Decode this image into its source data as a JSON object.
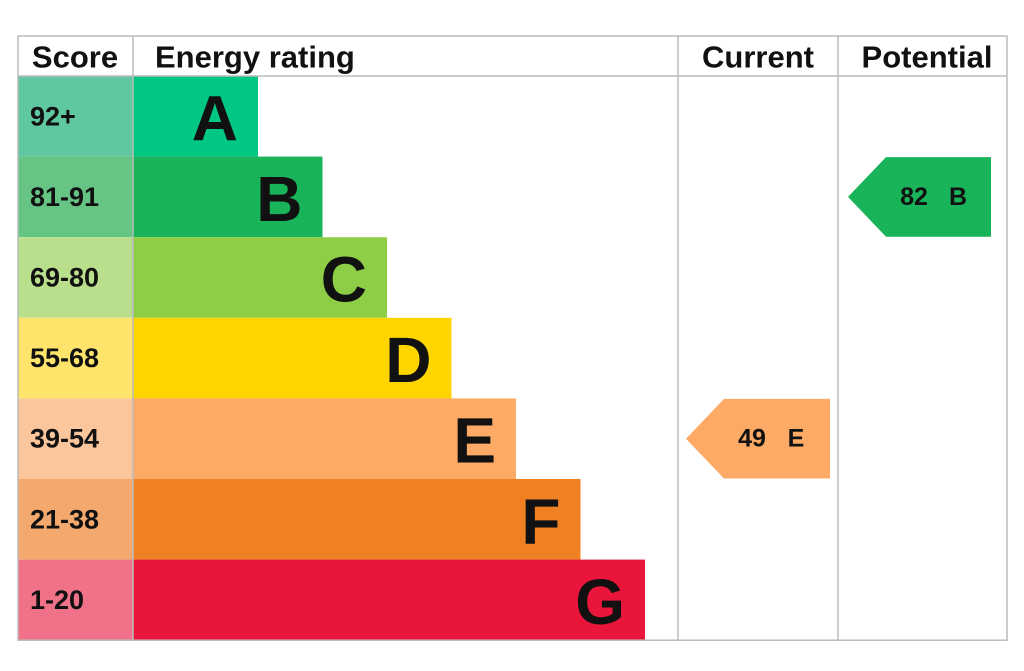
{
  "header": {
    "score": "Score",
    "rating": "Energy rating",
    "current": "Current",
    "potential": "Potential"
  },
  "bands": [
    {
      "score": "92+",
      "letter": "A"
    },
    {
      "score": "81-91",
      "letter": "B"
    },
    {
      "score": "69-80",
      "letter": "C"
    },
    {
      "score": "55-68",
      "letter": "D"
    },
    {
      "score": "39-54",
      "letter": "E"
    },
    {
      "score": "21-38",
      "letter": "F"
    },
    {
      "score": "1-20",
      "letter": "G"
    }
  ],
  "current": {
    "score": 49,
    "letter": "E"
  },
  "potential": {
    "score": 82,
    "letter": "B"
  }
}
